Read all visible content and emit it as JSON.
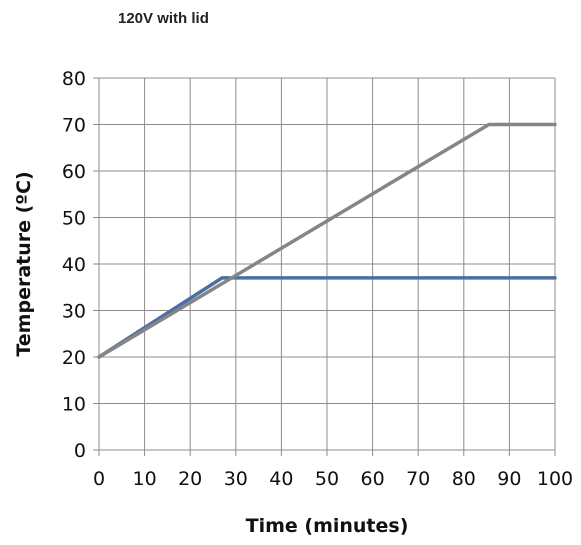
{
  "chart_data": {
    "type": "line",
    "title": "120V with lid",
    "xlabel": "Time (minutes)",
    "ylabel": "Temperature (ºC)",
    "xlim": [
      0,
      100
    ],
    "ylim": [
      0,
      80
    ],
    "xticks": [
      "0",
      "10",
      "20",
      "30",
      "40",
      "50",
      "60",
      "70",
      "80",
      "90",
      "100"
    ],
    "yticks": [
      "0",
      "10",
      "20",
      "30",
      "40",
      "50",
      "60",
      "70",
      "80"
    ],
    "grid": true,
    "legend": "none",
    "series": [
      {
        "color": "#4a6fa5",
        "points": [
          [
            0,
            20
          ],
          [
            27,
            37
          ],
          [
            100,
            37
          ]
        ]
      },
      {
        "color": "#858585",
        "points": [
          [
            0,
            20
          ],
          [
            85.5,
            70
          ],
          [
            100,
            70
          ]
        ]
      }
    ]
  },
  "colors": {
    "grid": "#8c8c8c",
    "axis": "#8c8c8c"
  }
}
